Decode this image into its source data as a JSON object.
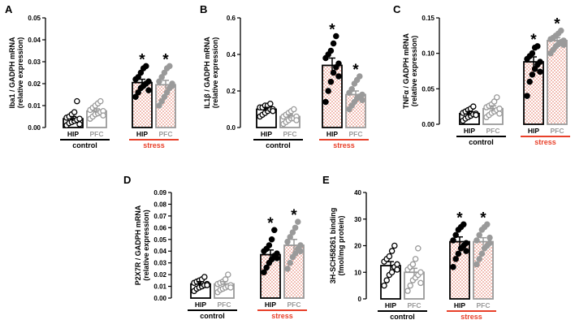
{
  "colors": {
    "hip": "#000000",
    "pfc": "#9a9a9a",
    "stress": "#e8402a",
    "hatch": "#e06a55",
    "control": "#000000"
  },
  "chart_data": [
    {
      "type": "bar",
      "panel": "A",
      "ylabel_lines": [
        "Iba1 / GADPH mRNA",
        "(relative expression)"
      ],
      "ylim": [
        0,
        0.05
      ],
      "yticks": [
        "0.00",
        "0.01",
        "0.02",
        "0.03",
        "0.04",
        "0.05"
      ],
      "categories": [
        "HIP",
        "PFC",
        "HIP",
        "PFC"
      ],
      "groups": [
        "control",
        "stress"
      ],
      "values": [
        0.004,
        0.0075,
        0.0205,
        0.0195
      ],
      "errors": [
        0.001,
        0.001,
        0.0015,
        0.002
      ],
      "points": [
        [
          0.001,
          0.002,
          0.0025,
          0.003,
          0.0035,
          0.004,
          0.0045,
          0.005,
          0.006,
          0.007,
          0.012,
          0.0015
        ],
        [
          0.004,
          0.005,
          0.006,
          0.0065,
          0.007,
          0.0075,
          0.008,
          0.009,
          0.01,
          0.011,
          0.012,
          0.0055
        ],
        [
          0.014,
          0.016,
          0.018,
          0.019,
          0.02,
          0.021,
          0.022,
          0.023,
          0.025,
          0.027,
          0.028,
          0.017
        ],
        [
          0.01,
          0.012,
          0.014,
          0.016,
          0.018,
          0.019,
          0.021,
          0.023,
          0.025,
          0.027,
          0.028,
          0.02
        ]
      ],
      "significant": [
        false,
        false,
        true,
        true
      ]
    },
    {
      "type": "bar",
      "panel": "B",
      "ylabel_lines": [
        "IL1β / GADPH mRNA",
        "(relative expression)"
      ],
      "ylim": [
        0,
        0.6
      ],
      "yticks": [
        "0.0",
        "0.2",
        "0.4",
        "0.6"
      ],
      "categories": [
        "HIP",
        "PFC",
        "HIP",
        "PFC"
      ],
      "groups": [
        "control",
        "stress"
      ],
      "values": [
        0.1,
        0.06,
        0.34,
        0.18
      ],
      "errors": [
        0.01,
        0.01,
        0.04,
        0.02
      ],
      "points": [
        [
          0.06,
          0.07,
          0.08,
          0.09,
          0.1,
          0.1,
          0.11,
          0.11,
          0.12,
          0.12,
          0.13,
          0.09
        ],
        [
          0.02,
          0.03,
          0.04,
          0.05,
          0.05,
          0.06,
          0.06,
          0.07,
          0.08,
          0.09,
          0.1,
          0.04
        ],
        [
          0.14,
          0.2,
          0.25,
          0.3,
          0.33,
          0.35,
          0.38,
          0.4,
          0.42,
          0.46,
          0.5,
          0.28
        ],
        [
          0.1,
          0.12,
          0.14,
          0.16,
          0.17,
          0.18,
          0.19,
          0.21,
          0.24,
          0.26,
          0.28,
          0.15
        ]
      ],
      "significant": [
        false,
        false,
        true,
        true
      ]
    },
    {
      "type": "bar",
      "panel": "C",
      "ylabel_lines": [
        "TNFα / GADPH mRNA",
        "(relative expression)"
      ],
      "ylim": [
        0,
        0.15
      ],
      "yticks": [
        "0.00",
        "0.05",
        "0.10",
        "0.15"
      ],
      "categories": [
        "HIP",
        "PFC",
        "HIP",
        "PFC"
      ],
      "groups": [
        "control",
        "stress"
      ],
      "values": [
        0.015,
        0.022,
        0.088,
        0.118
      ],
      "errors": [
        0.003,
        0.004,
        0.007,
        0.004
      ],
      "points": [
        [
          0.005,
          0.008,
          0.01,
          0.012,
          0.014,
          0.015,
          0.016,
          0.018,
          0.02,
          0.022,
          0.025,
          0.013
        ],
        [
          0.01,
          0.013,
          0.016,
          0.018,
          0.02,
          0.022,
          0.024,
          0.026,
          0.028,
          0.032,
          0.038,
          0.015
        ],
        [
          0.04,
          0.06,
          0.07,
          0.078,
          0.084,
          0.088,
          0.092,
          0.096,
          0.1,
          0.108,
          0.11,
          0.074
        ],
        [
          0.1,
          0.105,
          0.11,
          0.113,
          0.116,
          0.118,
          0.12,
          0.122,
          0.125,
          0.128,
          0.132,
          0.112
        ]
      ],
      "significant": [
        false,
        false,
        true,
        true
      ]
    },
    {
      "type": "bar",
      "panel": "D",
      "ylabel_lines": [
        "P2X7R / GADPH mRNA",
        "(relative expression)"
      ],
      "ylim": [
        0,
        0.09
      ],
      "yticks": [
        "0.00",
        "0.01",
        "0.02",
        "0.03",
        "0.04",
        "0.05",
        "0.06",
        "0.07",
        "0.08",
        "0.09"
      ],
      "categories": [
        "HIP",
        "PFC",
        "HIP",
        "PFC"
      ],
      "groups": [
        "control",
        "stress"
      ],
      "values": [
        0.012,
        0.012,
        0.037,
        0.045
      ],
      "errors": [
        0.002,
        0.002,
        0.004,
        0.005
      ],
      "points": [
        [
          0.006,
          0.008,
          0.009,
          0.01,
          0.011,
          0.012,
          0.013,
          0.014,
          0.015,
          0.016,
          0.018,
          0.011
        ],
        [
          0.005,
          0.007,
          0.008,
          0.009,
          0.01,
          0.011,
          0.012,
          0.013,
          0.014,
          0.016,
          0.02,
          0.009
        ],
        [
          0.022,
          0.026,
          0.03,
          0.033,
          0.036,
          0.038,
          0.04,
          0.042,
          0.045,
          0.05,
          0.058,
          0.034
        ],
        [
          0.025,
          0.03,
          0.035,
          0.038,
          0.042,
          0.045,
          0.048,
          0.052,
          0.056,
          0.06,
          0.065,
          0.04
        ]
      ],
      "significant": [
        false,
        false,
        true,
        true
      ]
    },
    {
      "type": "bar",
      "panel": "E",
      "ylabel_lines": [
        "3H-SCH58261 binding",
        "(fmol/mg protein)"
      ],
      "ylim": [
        0,
        40
      ],
      "yticks": [
        "0",
        "10",
        "20",
        "30",
        "40"
      ],
      "categories": [
        "HIP",
        "PFC",
        "HIP",
        "PFC"
      ],
      "groups": [
        "control",
        "stress"
      ],
      "values": [
        12.5,
        10,
        21.5,
        21.5
      ],
      "errors": [
        1.5,
        1.5,
        1.8,
        1.5
      ],
      "points": [
        [
          5,
          7,
          9,
          10,
          12,
          13,
          14,
          15,
          16,
          18,
          20,
          11
        ],
        [
          3,
          5,
          7,
          8,
          9,
          10,
          11,
          12,
          13,
          15,
          19,
          6
        ],
        [
          12,
          15,
          17,
          19,
          20,
          21,
          22,
          24,
          26,
          27,
          28,
          18
        ],
        [
          13,
          15,
          17,
          19,
          20,
          21,
          22,
          24,
          26,
          27,
          28,
          23
        ]
      ],
      "significant": [
        false,
        false,
        true,
        true
      ]
    }
  ]
}
